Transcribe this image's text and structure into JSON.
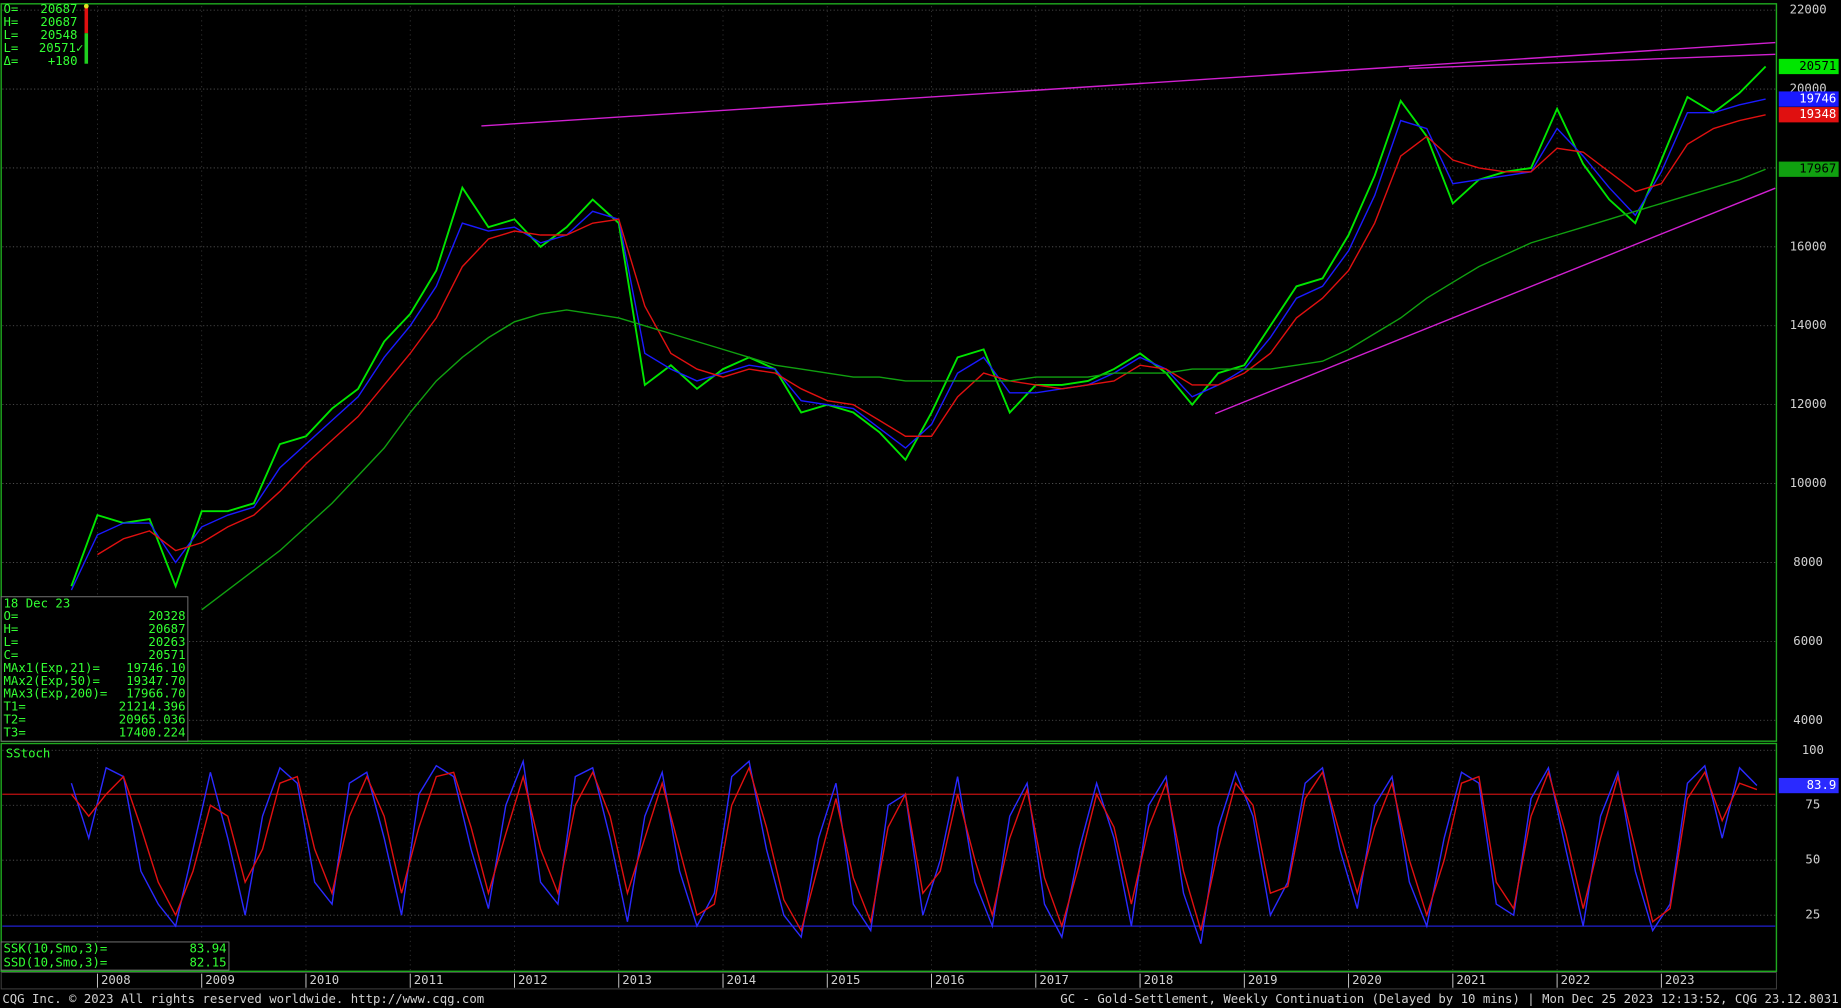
{
  "chart_data": [
    {
      "type": "line",
      "categories": [
        null,
        "2008",
        null,
        null,
        null,
        "2009",
        null,
        null,
        null,
        "2010",
        null,
        null,
        null,
        "2011",
        null,
        null,
        null,
        "2012",
        null,
        null,
        null,
        "2013",
        null,
        null,
        null,
        "2014",
        null,
        null,
        null,
        "2015",
        null,
        null,
        null,
        "2016",
        null,
        null,
        null,
        "2017",
        null,
        null,
        null,
        "2018",
        null,
        null,
        null,
        "2019",
        null,
        null,
        null,
        "2020",
        null,
        null,
        null,
        "2021",
        null,
        null,
        null,
        "2022",
        null,
        null,
        null,
        "2023",
        null,
        null,
        null,
        null
      ],
      "series": [
        {
          "name": "C=",
          "color": "#00e600",
          "values": [
            7400,
            9200,
            9000,
            9100,
            7400,
            9300,
            9300,
            9500,
            11000,
            11200,
            11900,
            12400,
            13600,
            14300,
            15400,
            17500,
            16500,
            16700,
            16000,
            16500,
            17200,
            16600,
            12500,
            13000,
            12400,
            12900,
            13200,
            12900,
            11800,
            12000,
            11800,
            11300,
            10600,
            11800,
            13200,
            13400,
            11800,
            12500,
            12500,
            12600,
            12900,
            13300,
            12800,
            12000,
            12800,
            13000,
            14000,
            15000,
            15200,
            16300,
            17800,
            19700,
            18800,
            17100,
            17700,
            17900,
            18000,
            19500,
            18100,
            17200,
            16600,
            18200,
            19800,
            19400,
            19900,
            20571
          ]
        },
        {
          "name": "MAx1(Exp,21)=",
          "color": "#1a1aff",
          "values": [
            7300,
            8700,
            9000,
            9000,
            8000,
            8900,
            9200,
            9400,
            10400,
            11000,
            11600,
            12200,
            13200,
            14000,
            15000,
            16600,
            16400,
            16500,
            16100,
            16300,
            16900,
            16700,
            13300,
            12900,
            12600,
            12800,
            13000,
            12900,
            12100,
            12000,
            11900,
            11400,
            10900,
            11500,
            12800,
            13200,
            12300,
            12300,
            12400,
            12500,
            12800,
            13200,
            12900,
            12200,
            12500,
            12900,
            13700,
            14700,
            15000,
            15900,
            17300,
            19200,
            19000,
            17600,
            17700,
            17800,
            17900,
            19000,
            18300,
            17500,
            16800,
            17900,
            19400,
            19400,
            19600,
            19746
          ]
        },
        {
          "name": "MAx2(Exp,50)=",
          "color": "#e01010",
          "values": [
            null,
            8200,
            8600,
            8800,
            8300,
            8500,
            8900,
            9200,
            9800,
            10500,
            11100,
            11700,
            12500,
            13300,
            14200,
            15500,
            16200,
            16400,
            16300,
            16300,
            16600,
            16700,
            14500,
            13300,
            12900,
            12700,
            12900,
            12800,
            12400,
            12100,
            12000,
            11600,
            11200,
            11200,
            12200,
            12800,
            12600,
            12500,
            12400,
            12500,
            12600,
            13000,
            12900,
            12500,
            12500,
            12800,
            13300,
            14200,
            14700,
            15400,
            16600,
            18300,
            18800,
            18200,
            18000,
            17900,
            17900,
            18500,
            18400,
            17900,
            17400,
            17600,
            18600,
            19000,
            19200,
            19348
          ]
        },
        {
          "name": "MAx3(Exp,200)=",
          "color": "#10a010",
          "values": [
            null,
            null,
            null,
            null,
            null,
            6800,
            7300,
            7800,
            8300,
            8900,
            9500,
            10200,
            10900,
            11800,
            12600,
            13200,
            13700,
            14100,
            14300,
            14400,
            14300,
            14200,
            14000,
            13800,
            13600,
            13400,
            13200,
            13000,
            12900,
            12800,
            12700,
            12700,
            12600,
            12600,
            12600,
            12600,
            12600,
            12700,
            12700,
            12700,
            12800,
            12800,
            12800,
            12900,
            12900,
            12900,
            12900,
            13000,
            13100,
            13400,
            13800,
            14200,
            14700,
            15100,
            15500,
            15800,
            16100,
            16300,
            16500,
            16700,
            16900,
            17100,
            17300,
            17500,
            17700,
            17967
          ]
        }
      ],
      "ylim": [
        3500,
        22100
      ],
      "yticks": [
        4000,
        6000,
        8000,
        10000,
        12000,
        14000,
        16000,
        18000,
        20000,
        22000
      ],
      "grid": true
    },
    {
      "type": "line",
      "title": "SStoch",
      "categories": [
        null,
        null,
        null,
        null,
        null,
        null,
        null,
        null,
        null,
        null,
        null,
        null,
        null,
        null,
        null,
        null,
        null,
        null,
        null,
        null,
        null,
        null,
        null,
        null,
        null,
        null,
        null,
        null,
        null,
        null,
        null,
        null,
        null,
        null,
        null,
        null,
        null,
        null,
        null,
        null,
        null,
        null,
        null,
        null,
        null,
        null,
        null,
        null,
        null,
        null,
        null,
        null,
        null,
        null,
        null,
        null,
        null,
        null,
        null,
        null,
        null,
        null,
        null,
        null,
        null,
        null,
        null,
        null,
        null,
        null,
        null,
        null,
        null,
        null,
        null,
        null,
        null,
        null,
        null,
        null,
        null,
        null,
        null,
        null,
        null,
        null,
        null,
        null,
        null,
        null,
        null,
        null,
        null,
        null,
        null,
        null,
        null,
        null
      ],
      "series": [
        {
          "name": "SSK(10,Smo,3)=",
          "color": "#2a2aff",
          "values": [
            85,
            60,
            92,
            88,
            45,
            30,
            20,
            55,
            90,
            60,
            25,
            70,
            92,
            85,
            40,
            30,
            85,
            90,
            60,
            25,
            80,
            93,
            88,
            55,
            28,
            75,
            95,
            40,
            30,
            88,
            92,
            60,
            22,
            70,
            90,
            45,
            20,
            35,
            88,
            95,
            55,
            25,
            15,
            60,
            85,
            30,
            18,
            75,
            80,
            25,
            50,
            88,
            40,
            20,
            70,
            85,
            30,
            15,
            55,
            85,
            60,
            20,
            75,
            88,
            35,
            12,
            65,
            90,
            70,
            25,
            40,
            85,
            92,
            55,
            28,
            75,
            88,
            40,
            20,
            60,
            90,
            85,
            30,
            25,
            78,
            92,
            55,
            20,
            70,
            90,
            45,
            18,
            30,
            85,
            93,
            60,
            92,
            83.94
          ]
        },
        {
          "name": "SSD(10,Smo,3)=",
          "color": "#e01010",
          "values": [
            80,
            70,
            80,
            88,
            65,
            40,
            25,
            45,
            75,
            70,
            40,
            55,
            85,
            88,
            55,
            35,
            70,
            88,
            70,
            35,
            65,
            88,
            90,
            65,
            35,
            62,
            88,
            55,
            35,
            75,
            90,
            70,
            35,
            60,
            85,
            55,
            25,
            30,
            75,
            92,
            65,
            32,
            18,
            48,
            78,
            42,
            22,
            65,
            80,
            35,
            45,
            80,
            50,
            25,
            60,
            82,
            42,
            20,
            48,
            80,
            65,
            30,
            65,
            85,
            45,
            18,
            55,
            85,
            75,
            35,
            38,
            78,
            90,
            62,
            35,
            65,
            85,
            50,
            25,
            50,
            85,
            88,
            40,
            28,
            70,
            90,
            62,
            28,
            60,
            88,
            55,
            22,
            28,
            78,
            90,
            68,
            85,
            82.15
          ]
        }
      ],
      "ylim": [
        0,
        102
      ],
      "yticks": [
        25,
        50,
        75,
        100
      ],
      "levels": [
        80,
        20
      ],
      "level_colors": [
        "#c01010",
        "#2020d0"
      ],
      "last_label": "83.9",
      "grid": true
    }
  ],
  "quote_box": [
    [
      "O=",
      "20687"
    ],
    [
      "H=",
      "20687"
    ],
    [
      "L=",
      "20548"
    ],
    [
      "L=",
      "20571✓"
    ],
    [
      "Δ=",
      "+180"
    ]
  ],
  "data_window": {
    "date": "18 Dec 23",
    "ohlc": [
      [
        "O=",
        "20328"
      ],
      [
        "H=",
        "20687"
      ],
      [
        "L=",
        "20263"
      ]
    ],
    "ma_values": [
      "19746.10",
      "19347.70",
      "17966.70"
    ],
    "targets": [
      [
        "T1=",
        "21214.396"
      ],
      [
        "T2=",
        "20965.036"
      ],
      [
        "T3=",
        "17400.224"
      ]
    ]
  },
  "footer": {
    "left": "CQG Inc. © 2023 All rights reserved worldwide. http://www.cqg.com",
    "right": "GC - Gold-Settlement, Weekly Continuation (Delayed by 10 mins) | Mon Dec 25 2023 12:13:52, CQG 23.12.8031"
  }
}
